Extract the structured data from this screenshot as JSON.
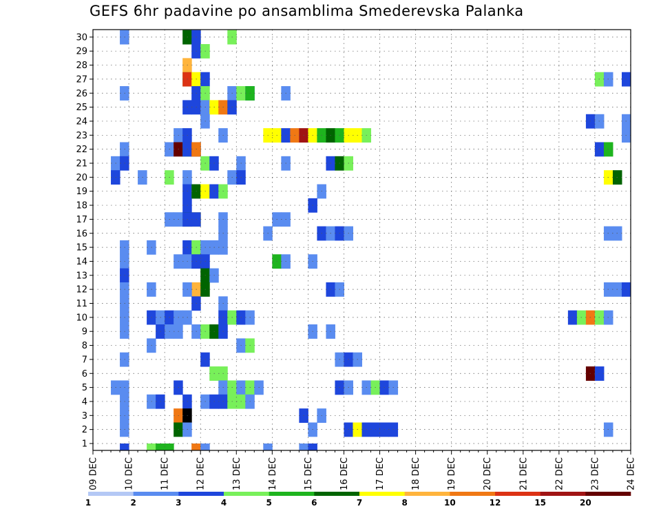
{
  "chart_data": {
    "type": "heatmap",
    "title": "GEFS 6hr padavine po ansamblima Smederevska Palanka",
    "x_tick_labels": [
      "09 DEC",
      "10 DEC",
      "11 DEC",
      "12 DEC",
      "13 DEC",
      "14 DEC",
      "15 DEC",
      "16 DEC",
      "17 DEC",
      "18 DEC",
      "19 DEC",
      "20 DEC",
      "21 DEC",
      "22 DEC",
      "23 DEC",
      "24 DEC"
    ],
    "y_tick_labels": [
      "1",
      "2",
      "3",
      "4",
      "5",
      "6",
      "7",
      "8",
      "9",
      "10",
      "11",
      "12",
      "13",
      "14",
      "15",
      "16",
      "17",
      "18",
      "19",
      "20",
      "21",
      "22",
      "23",
      "24",
      "25",
      "26",
      "27",
      "28",
      "29",
      "30"
    ],
    "x_range_steps": [
      0,
      60
    ],
    "y_range_members": [
      0,
      30
    ],
    "grid": true,
    "legend": {
      "placement": "bottom",
      "labels": [
        "1",
        "2",
        "3",
        "4",
        "5",
        "6",
        "7",
        "8",
        "10",
        "12",
        "15",
        "20"
      ],
      "colors": [
        "#b4c8f5",
        "#5a8cf0",
        "#1e46dc",
        "#78f05a",
        "#1eb41e",
        "#006400",
        "#ffff00",
        "#ffb43c",
        "#f07814",
        "#dc3214",
        "#a01414",
        "#640000"
      ]
    },
    "cells": [
      [
        3,
        30,
        1
      ],
      [
        10,
        30,
        5
      ],
      [
        11,
        30,
        2
      ],
      [
        15,
        30,
        3
      ],
      [
        11,
        29,
        2
      ],
      [
        12,
        29,
        3
      ],
      [
        10,
        28,
        7
      ],
      [
        10,
        27,
        3
      ],
      [
        10,
        27,
        9
      ],
      [
        11,
        27,
        6
      ],
      [
        12,
        27,
        2
      ],
      [
        56,
        27,
        3
      ],
      [
        57,
        27,
        1
      ],
      [
        59,
        27,
        2
      ],
      [
        3,
        26,
        1
      ],
      [
        11,
        26,
        2
      ],
      [
        12,
        26,
        3
      ],
      [
        15,
        26,
        1
      ],
      [
        16,
        26,
        3
      ],
      [
        17,
        26,
        1
      ],
      [
        17,
        26,
        4
      ],
      [
        21,
        26,
        1
      ],
      [
        10,
        25,
        2
      ],
      [
        11,
        25,
        2
      ],
      [
        12,
        25,
        1
      ],
      [
        13,
        25,
        6
      ],
      [
        14,
        25,
        8
      ],
      [
        15,
        25,
        2
      ],
      [
        12,
        24,
        1
      ],
      [
        55,
        24,
        2
      ],
      [
        56,
        24,
        1
      ],
      [
        59,
        24,
        1
      ],
      [
        9,
        23,
        1
      ],
      [
        10,
        23,
        2
      ],
      [
        14,
        23,
        1
      ],
      [
        19,
        23,
        6
      ],
      [
        20,
        23,
        6
      ],
      [
        21,
        23,
        2
      ],
      [
        22,
        23,
        8
      ],
      [
        23,
        23,
        10
      ],
      [
        24,
        23,
        6
      ],
      [
        25,
        23,
        4
      ],
      [
        26,
        23,
        5
      ],
      [
        27,
        23,
        4
      ],
      [
        28,
        23,
        6
      ],
      [
        29,
        23,
        6
      ],
      [
        30,
        23,
        3
      ],
      [
        59,
        23,
        1
      ],
      [
        3,
        22,
        1
      ],
      [
        8,
        22,
        1
      ],
      [
        9,
        22,
        11
      ],
      [
        10,
        22,
        4
      ],
      [
        10,
        22,
        2
      ],
      [
        11,
        22,
        11
      ],
      [
        11,
        22,
        8
      ],
      [
        56,
        22,
        2
      ],
      [
        57,
        22,
        4
      ],
      [
        2,
        21,
        1
      ],
      [
        3,
        21,
        2
      ],
      [
        12,
        21,
        3
      ],
      [
        13,
        21,
        2
      ],
      [
        16,
        21,
        1
      ],
      [
        21,
        21,
        1
      ],
      [
        26,
        21,
        2
      ],
      [
        27,
        21,
        5
      ],
      [
        28,
        21,
        3
      ],
      [
        2,
        20,
        2
      ],
      [
        5,
        20,
        1
      ],
      [
        8,
        20,
        3
      ],
      [
        10,
        20,
        1
      ],
      [
        15,
        20,
        1
      ],
      [
        16,
        20,
        2
      ],
      [
        57,
        20,
        6
      ],
      [
        58,
        20,
        5
      ],
      [
        10,
        19,
        2
      ],
      [
        11,
        19,
        1
      ],
      [
        11,
        19,
        5
      ],
      [
        12,
        19,
        6
      ],
      [
        13,
        19,
        2
      ],
      [
        14,
        19,
        3
      ],
      [
        25,
        19,
        1
      ],
      [
        10,
        18,
        2
      ],
      [
        24,
        18,
        2
      ],
      [
        10,
        17,
        5
      ],
      [
        11,
        17,
        6
      ],
      [
        8,
        17,
        1
      ],
      [
        9,
        17,
        1
      ],
      [
        10,
        17,
        2
      ],
      [
        11,
        17,
        2
      ],
      [
        14,
        17,
        1
      ],
      [
        20,
        17,
        1
      ],
      [
        21,
        17,
        1
      ],
      [
        14,
        16,
        1
      ],
      [
        19,
        16,
        1
      ],
      [
        25,
        16,
        2
      ],
      [
        26,
        16,
        1
      ],
      [
        27,
        16,
        2
      ],
      [
        28,
        16,
        1
      ],
      [
        57,
        16,
        1
      ],
      [
        58,
        16,
        1
      ],
      [
        3,
        15,
        1
      ],
      [
        6,
        15,
        1
      ],
      [
        10,
        15,
        2
      ],
      [
        11,
        15,
        3
      ],
      [
        12,
        15,
        1
      ],
      [
        13,
        15,
        1
      ],
      [
        14,
        15,
        1
      ],
      [
        3,
        14,
        1
      ],
      [
        9,
        14,
        1
      ],
      [
        10,
        14,
        1
      ],
      [
        11,
        14,
        2
      ],
      [
        12,
        14,
        2
      ],
      [
        24,
        14,
        1
      ],
      [
        20,
        14,
        4
      ],
      [
        21,
        14,
        1
      ],
      [
        3,
        13,
        2
      ],
      [
        12,
        13,
        5
      ],
      [
        13,
        13,
        1
      ],
      [
        3,
        12,
        1
      ],
      [
        11,
        12,
        7
      ],
      [
        12,
        12,
        5
      ],
      [
        10,
        12,
        1
      ],
      [
        6,
        12,
        1
      ],
      [
        26,
        12,
        2
      ],
      [
        27,
        12,
        1
      ],
      [
        57,
        12,
        1
      ],
      [
        58,
        12,
        1
      ],
      [
        59,
        12,
        2
      ],
      [
        3,
        11,
        1
      ],
      [
        11,
        11,
        2
      ],
      [
        14,
        11,
        1
      ],
      [
        3,
        10,
        1
      ],
      [
        6,
        10,
        2
      ],
      [
        7,
        10,
        1
      ],
      [
        8,
        10,
        2
      ],
      [
        9,
        10,
        1
      ],
      [
        10,
        10,
        1
      ],
      [
        14,
        10,
        2
      ],
      [
        15,
        10,
        3
      ],
      [
        16,
        10,
        2
      ],
      [
        17,
        10,
        1
      ],
      [
        53,
        10,
        2
      ],
      [
        54,
        10,
        3
      ],
      [
        55,
        10,
        8
      ],
      [
        56,
        10,
        3
      ],
      [
        57,
        10,
        1
      ],
      [
        3,
        9,
        1
      ],
      [
        7,
        9,
        2
      ],
      [
        8,
        9,
        1
      ],
      [
        9,
        9,
        1
      ],
      [
        11,
        9,
        1
      ],
      [
        12,
        9,
        3
      ],
      [
        13,
        9,
        5
      ],
      [
        14,
        9,
        2
      ],
      [
        24,
        9,
        1
      ],
      [
        26,
        9,
        1
      ],
      [
        6,
        8,
        1
      ],
      [
        16,
        8,
        1
      ],
      [
        17,
        8,
        3
      ],
      [
        3,
        7,
        1
      ],
      [
        12,
        7,
        2
      ],
      [
        27,
        7,
        1
      ],
      [
        28,
        7,
        2
      ],
      [
        29,
        7,
        1
      ],
      [
        13,
        6,
        3
      ],
      [
        14,
        6,
        3
      ],
      [
        55,
        6,
        11
      ],
      [
        56,
        6,
        2
      ],
      [
        2,
        5,
        1
      ],
      [
        3,
        5,
        1
      ],
      [
        9,
        5,
        2
      ],
      [
        14,
        5,
        1
      ],
      [
        15,
        5,
        3
      ],
      [
        16,
        5,
        1
      ],
      [
        17,
        5,
        3
      ],
      [
        18,
        5,
        1
      ],
      [
        27,
        5,
        2
      ],
      [
        28,
        5,
        1
      ],
      [
        30,
        5,
        1
      ],
      [
        31,
        5,
        3
      ],
      [
        32,
        5,
        2
      ],
      [
        33,
        5,
        1
      ],
      [
        3,
        4,
        1
      ],
      [
        6,
        4,
        1
      ],
      [
        7,
        4,
        2
      ],
      [
        10,
        4,
        2
      ],
      [
        12,
        4,
        1
      ],
      [
        13,
        4,
        2
      ],
      [
        14,
        4,
        2
      ],
      [
        15,
        4,
        3
      ],
      [
        16,
        4,
        3
      ],
      [
        17,
        4,
        1
      ],
      [
        3,
        3,
        1
      ],
      [
        9,
        3,
        8
      ],
      [
        10,
        3,
        12
      ],
      [
        23,
        3,
        2
      ],
      [
        25,
        3,
        1
      ],
      [
        3,
        2,
        1
      ],
      [
        9,
        2,
        5
      ],
      [
        10,
        2,
        1
      ],
      [
        24,
        2,
        1
      ],
      [
        28,
        2,
        2
      ],
      [
        29,
        2,
        6
      ],
      [
        30,
        2,
        2
      ],
      [
        31,
        2,
        2
      ],
      [
        32,
        2,
        2
      ],
      [
        33,
        2,
        2
      ],
      [
        57,
        2,
        1
      ]
    ],
    "row0_cells": [
      [
        3,
        2
      ],
      [
        6,
        3
      ],
      [
        7,
        4
      ],
      [
        8,
        4
      ],
      [
        11,
        8
      ],
      [
        12,
        1
      ],
      [
        19,
        1
      ],
      [
        23,
        1
      ],
      [
        24,
        2
      ]
    ]
  }
}
